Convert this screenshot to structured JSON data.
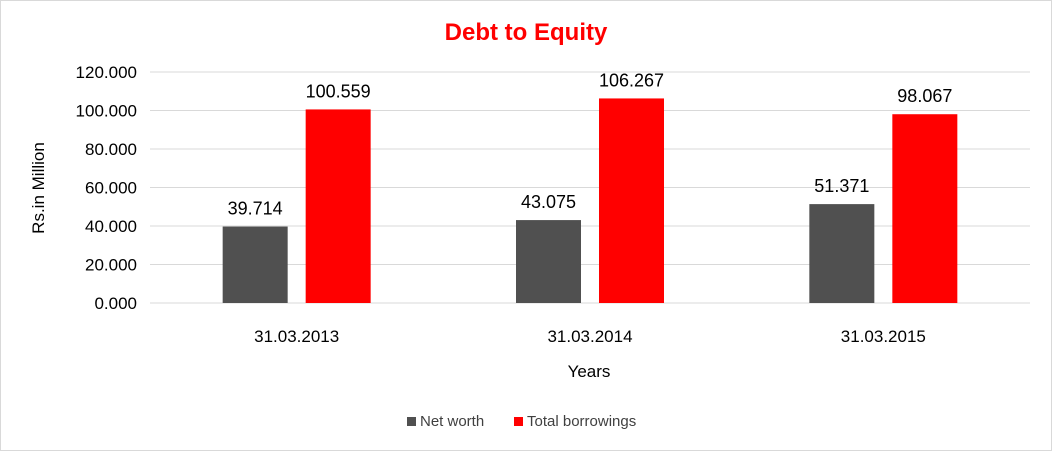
{
  "chart_data": {
    "type": "bar",
    "title": "Debt to Equity",
    "xlabel": "Years",
    "ylabel": "Rs.in Million",
    "categories": [
      "31.03.2013",
      "31.03.2014",
      "31.03.2015"
    ],
    "ylim": [
      0,
      120
    ],
    "yticks": [
      "0.000",
      "20.000",
      "40.000",
      "60.000",
      "80.000",
      "100.000",
      "120.000"
    ],
    "grid": true,
    "legend_position": "bottom",
    "series": [
      {
        "name": "Net worth",
        "color": "#505050",
        "values": [
          39.714,
          43.075,
          51.371
        ],
        "labels": [
          "39.714",
          "43.075",
          "51.371"
        ]
      },
      {
        "name": "Total borrowings",
        "color": "#ff0000",
        "values": [
          100.559,
          106.267,
          98.067
        ],
        "labels": [
          "100.559",
          "106.267",
          "98.067"
        ]
      }
    ],
    "title_color": "#ff0000"
  }
}
